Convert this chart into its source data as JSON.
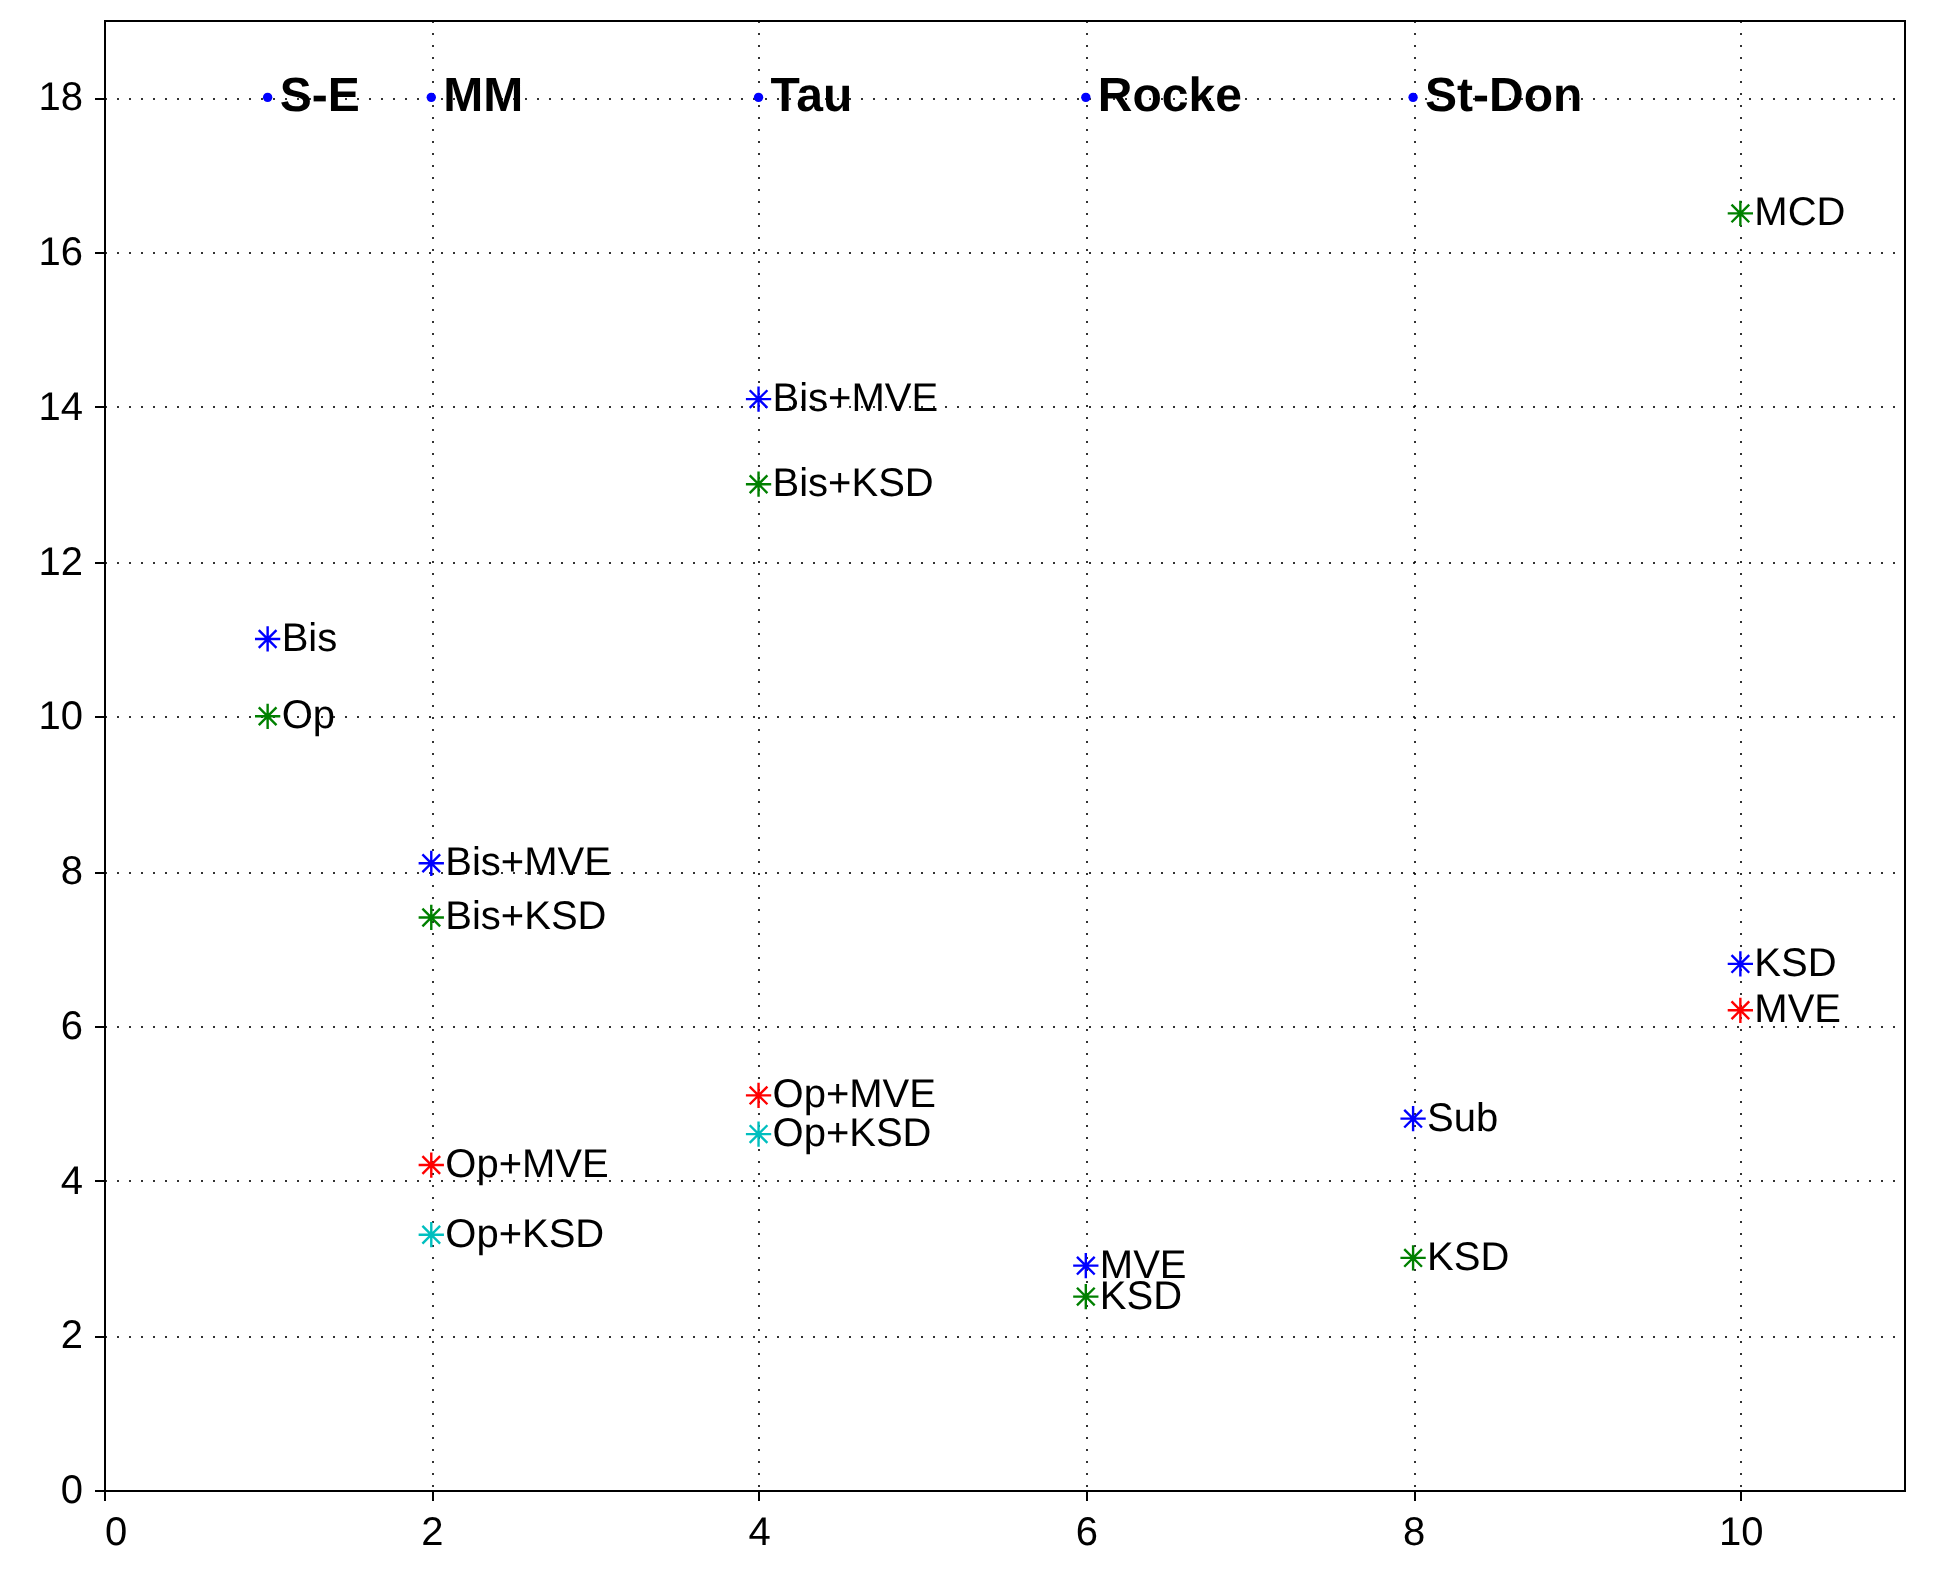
{
  "chart_data": {
    "type": "scatter",
    "xlim": [
      0,
      11
    ],
    "ylim": [
      0,
      19
    ],
    "xticks": [
      0,
      2,
      4,
      6,
      8,
      10
    ],
    "yticks": [
      0,
      2,
      4,
      6,
      8,
      10,
      12,
      14,
      16,
      18
    ],
    "grid": true,
    "marker": "cross",
    "series": [
      {
        "color": "#0000ff",
        "x": [
          1,
          2,
          4,
          6,
          8,
          10
        ],
        "values": [
          11.0,
          8.1,
          14.1,
          2.9,
          4.8,
          6.8
        ],
        "value_labels": [
          "Bis",
          "Bis+MVE",
          "Bis+MVE",
          "MVE",
          "Sub",
          "KSD"
        ]
      },
      {
        "color": "#008000",
        "x": [
          1,
          2,
          4,
          6,
          8,
          10
        ],
        "values": [
          10.0,
          7.4,
          13.0,
          2.5,
          3.0,
          16.5
        ],
        "value_labels": [
          "Op",
          "Bis+KSD",
          "Bis+KSD",
          "KSD",
          "KSD",
          "MCD"
        ]
      },
      {
        "color": "#ff0000",
        "x": [
          2,
          4,
          10
        ],
        "values": [
          4.2,
          5.1,
          6.2
        ],
        "value_labels": [
          "Op+MVE",
          "Op+MVE",
          "MVE"
        ]
      },
      {
        "color": "#00bfbf",
        "x": [
          2,
          4
        ],
        "values": [
          3.3,
          4.6
        ],
        "value_labels": [
          "Op+KSD",
          "Op+KSD"
        ]
      },
      {
        "color": "#0000ff",
        "x": [
          1,
          2,
          4,
          6,
          8
        ],
        "values": [
          18,
          18,
          18,
          18,
          18
        ],
        "marker": "circle"
      }
    ],
    "annotations": [
      {
        "text": "S-E",
        "x": 1,
        "y": 18
      },
      {
        "text": "MM",
        "x": 2,
        "y": 18
      },
      {
        "text": "Tau",
        "x": 4,
        "y": 18
      },
      {
        "text": "Rocke",
        "x": 6,
        "y": 18
      },
      {
        "text": "St-Don",
        "x": 8,
        "y": 18
      }
    ]
  }
}
